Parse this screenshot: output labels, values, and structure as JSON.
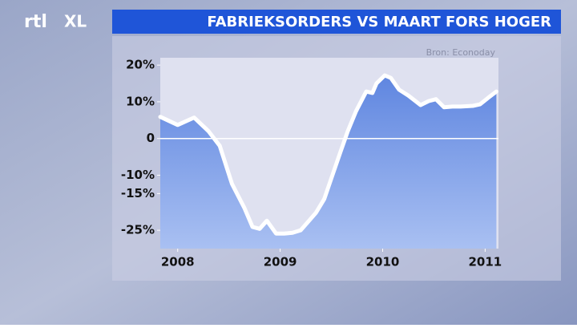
{
  "logo": [
    "rtl",
    "XL"
  ],
  "chart_data": {
    "type": "area",
    "title": "FABRIEKSORDERS VS MAART FORS HOGER",
    "source": "Bron: Econoday",
    "x": [
      2007.83,
      2008.0,
      2008.16,
      2008.3,
      2008.41,
      2008.53,
      2008.65,
      2008.73,
      2008.8,
      2008.87,
      2008.96,
      2009.04,
      2009.12,
      2009.2,
      2009.27,
      2009.35,
      2009.43,
      2009.51,
      2009.59,
      2009.66,
      2009.74,
      2009.84,
      2009.9,
      2009.94,
      2010.02,
      2010.08,
      2010.16,
      2010.25,
      2010.37,
      2010.45,
      2010.52,
      2010.6,
      2010.68,
      2010.76,
      2010.88,
      2010.95,
      2011.03,
      2011.11
    ],
    "series": [
      {
        "color": "#ffffff",
        "fill": "#6f92e6",
        "values": [
          5.9,
          3.7,
          5.7,
          2.0,
          -2.0,
          -12.4,
          -18.9,
          -24.1,
          -24.6,
          -22.4,
          -25.9,
          -25.9,
          -25.7,
          -25.0,
          -22.8,
          -20.2,
          -16.5,
          -10.0,
          -3.5,
          2.0,
          7.4,
          12.8,
          12.4,
          15.0,
          17.2,
          16.5,
          13.3,
          11.7,
          9.1,
          10.2,
          10.7,
          8.5,
          8.7,
          8.7,
          8.9,
          9.3,
          11.1,
          12.8
        ]
      }
    ],
    "xlim": [
      2007.83,
      2011.13
    ],
    "xticks": [
      2008,
      2009,
      2010,
      2011
    ],
    "ylim": [
      -30,
      22
    ],
    "yticks": [
      {
        "value": 20,
        "label": "20%"
      },
      {
        "value": 10,
        "label": "10%"
      },
      0,
      {
        "value": -10,
        "label": "-10%"
      },
      {
        "value": -15,
        "label": "-15%"
      },
      {
        "value": -25,
        "label": "-25%"
      }
    ],
    "zero_line": true
  }
}
